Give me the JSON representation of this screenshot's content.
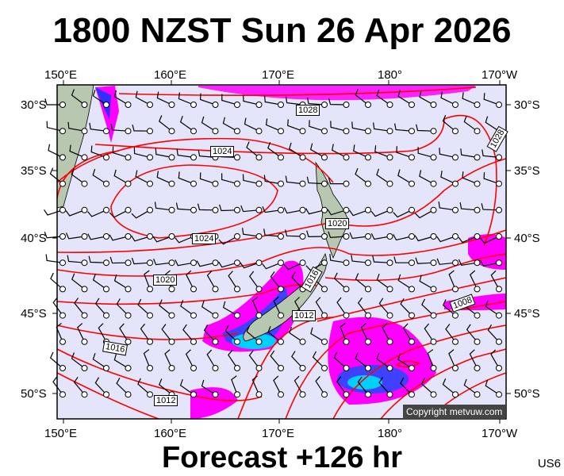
{
  "title": "1800 NZST Sun 26 Apr 2026",
  "footer": "Forecast +126 hr",
  "model_code": "US6",
  "copyright": "Copyright metvuw.com",
  "lon_labels": [
    "150°E",
    "160°E",
    "170°E",
    "180°",
    "170°W"
  ],
  "lat_labels": [
    "30°S",
    "35°S",
    "40°S",
    "45°S",
    "50°S"
  ],
  "isobar_labels": [
    "1028",
    "1024",
    "1020",
    "1024",
    "1020",
    "1016",
    "1012",
    "1016",
    "1012",
    "1008",
    "1028"
  ],
  "colors": {
    "ocean": "#e4e4fa",
    "isobar": "#ff0000",
    "land": "#b8c8b0",
    "precip_light": "#ff00ff",
    "precip_mid": "#6a00ff",
    "precip_heavy": "#00c8ff"
  }
}
